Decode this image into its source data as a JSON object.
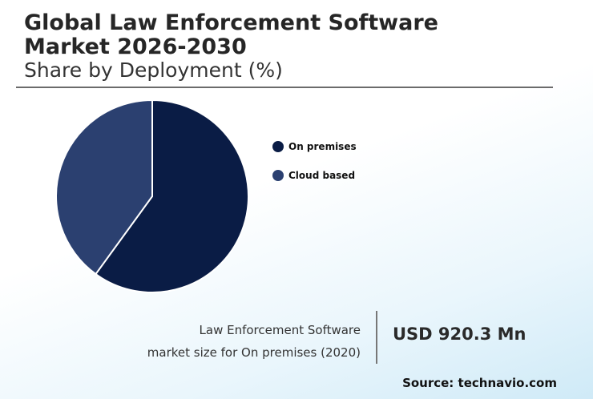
{
  "header": {
    "title": "Global Law Enforcement Software Market 2026-2030",
    "subtitle": "Share by Deployment (%)"
  },
  "chart_data": {
    "type": "pie",
    "title": "Global Law Enforcement Software Market 2026-2030",
    "subtitle": "Share by Deployment (%)",
    "categories": [
      "On premises",
      "Cloud based"
    ],
    "values": [
      60,
      40
    ],
    "colors": [
      "#0a1c45",
      "#2b4070"
    ],
    "legend_position": "right"
  },
  "legend": {
    "items": [
      {
        "label": "On premises",
        "color": "#0a1c45"
      },
      {
        "label": "Cloud based",
        "color": "#2b4070"
      }
    ]
  },
  "stat": {
    "label_line1": "Law Enforcement Software",
    "label_line2": "market size for On premises (2020)",
    "value": "USD 920.3 Mn"
  },
  "footer": {
    "source": "Source: technavio.com"
  }
}
